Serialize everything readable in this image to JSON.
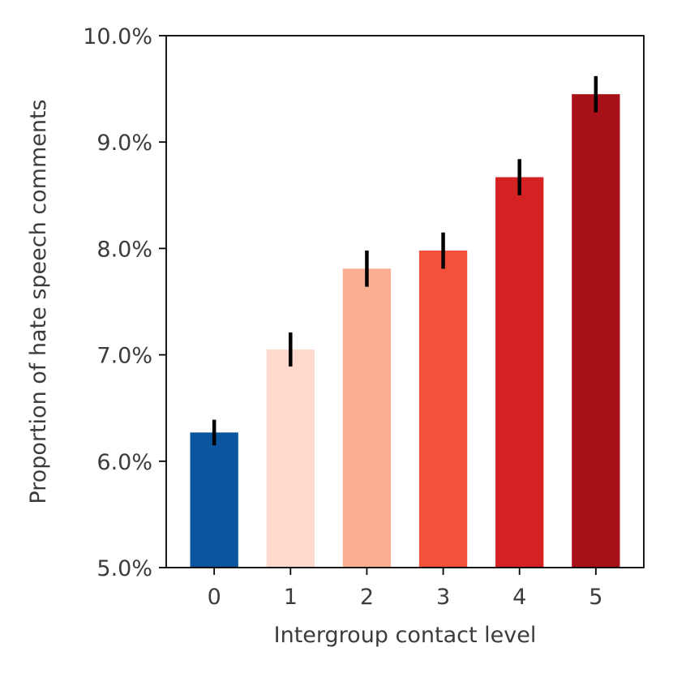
{
  "chart_data": {
    "type": "bar",
    "categories": [
      "0",
      "1",
      "2",
      "3",
      "4",
      "5"
    ],
    "values": [
      6.27,
      7.05,
      7.81,
      7.98,
      8.67,
      9.45
    ],
    "error": [
      0.12,
      0.16,
      0.17,
      0.17,
      0.17,
      0.17
    ],
    "colors": [
      "#0a559e",
      "#fed9cc",
      "#fcae91",
      "#f3513c",
      "#d42121",
      "#a81118"
    ],
    "error_color": "#000000",
    "title": "",
    "xlabel": "Intergroup contact level",
    "ylabel": "Proportion of hate speech comments",
    "ylim": [
      5.0,
      10.0
    ],
    "yticks": [
      5.0,
      6.0,
      7.0,
      8.0,
      9.0,
      10.0
    ],
    "ytick_labels": [
      "5.0%",
      "6.0%",
      "7.0%",
      "8.0%",
      "9.0%",
      "10.0%"
    ],
    "grid": false,
    "legend": "none"
  }
}
